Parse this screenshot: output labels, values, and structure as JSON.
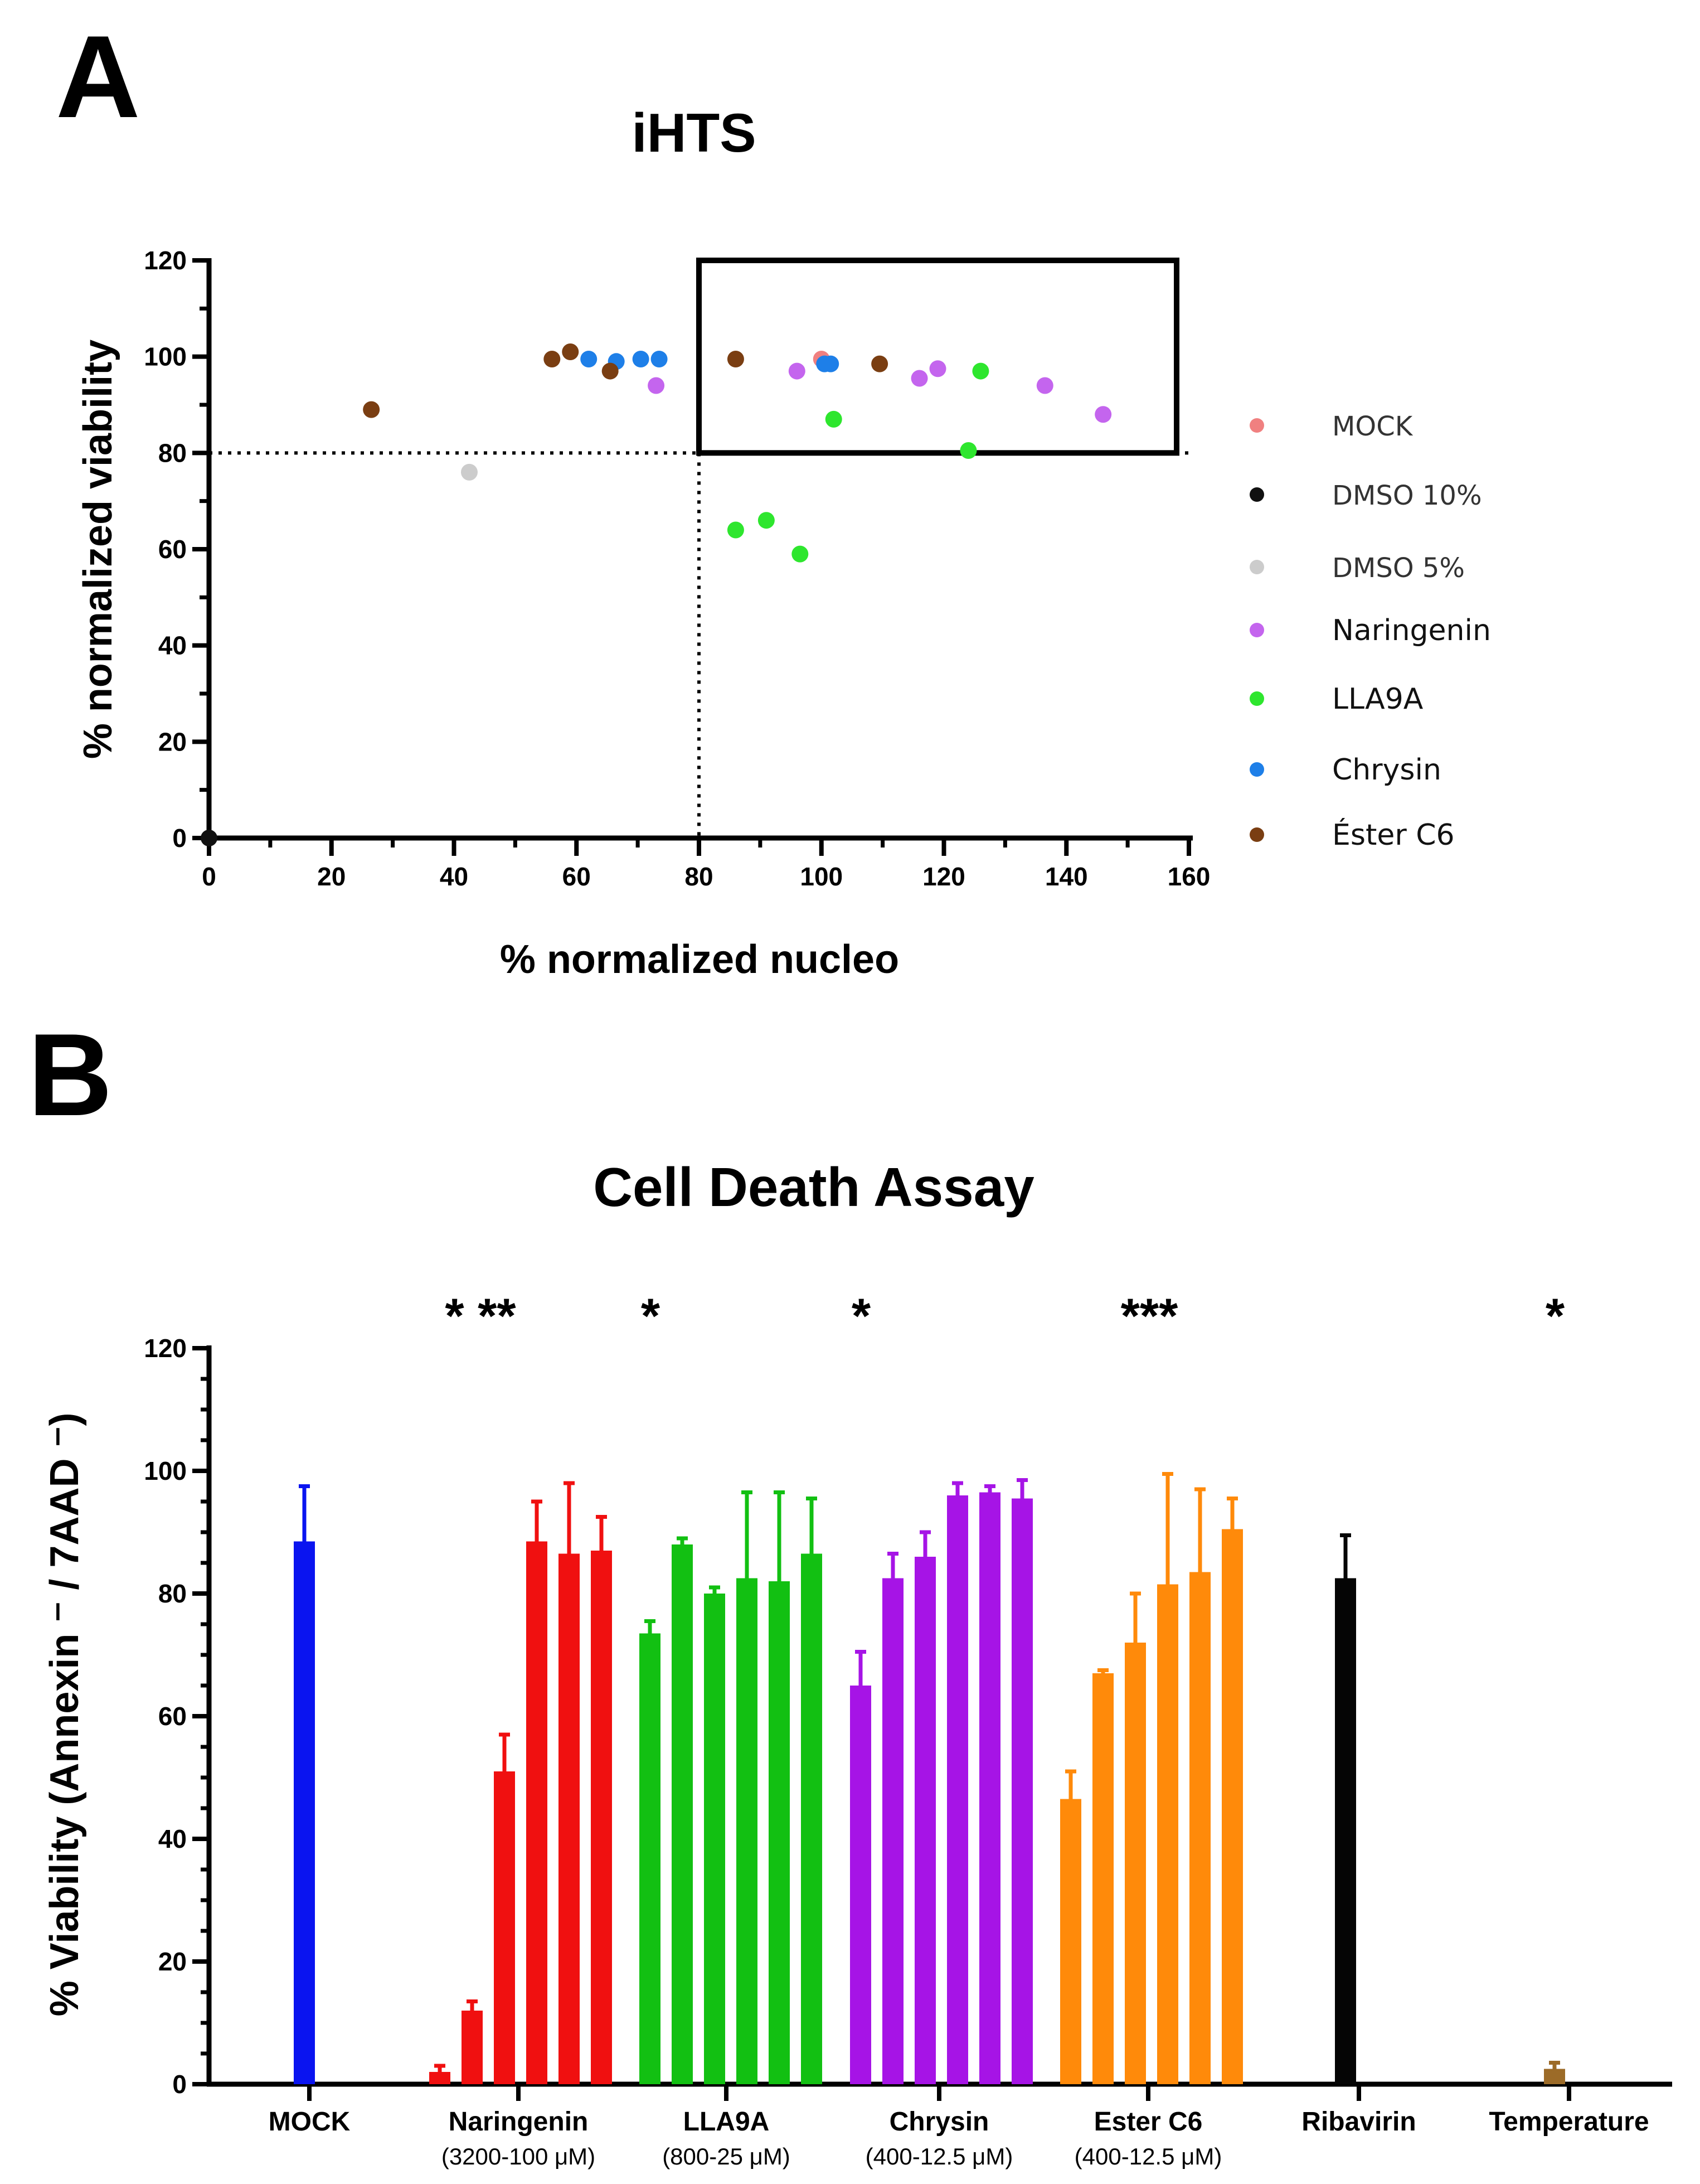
{
  "panels": {
    "a_letter": "A",
    "b_letter": "B"
  },
  "chart_data": [
    {
      "type": "scatter",
      "title": "iHTS",
      "xlabel": "% normalized nucleo",
      "ylabel": "% normalized viability",
      "xlim": [
        0,
        160
      ],
      "ylim": [
        0,
        120
      ],
      "xticks": [
        0,
        20,
        40,
        60,
        80,
        100,
        120,
        140,
        160
      ],
      "yticks": [
        0,
        20,
        40,
        60,
        80,
        100,
        120
      ],
      "threshold_lines": {
        "x": 80,
        "y": 80
      },
      "highlight_box": {
        "x_range": [
          80,
          158
        ],
        "y_range": [
          80,
          120
        ]
      },
      "series": [
        {
          "name": "MOCK",
          "color": "#f08080",
          "points": [
            [
              100,
              99.5
            ]
          ]
        },
        {
          "name": "DMSO 10%",
          "color": "#111111",
          "points": [
            [
              0,
              0
            ]
          ]
        },
        {
          "name": "DMSO 5%",
          "color": "#cccccc",
          "points": [
            [
              42.5,
              76
            ]
          ]
        },
        {
          "name": "Naringenin",
          "color": "#c465ee",
          "points": [
            [
              73,
              94
            ],
            [
              96,
              97
            ],
            [
              116,
              95.5
            ],
            [
              119,
              97.5
            ],
            [
              136.5,
              94
            ],
            [
              146,
              88
            ]
          ]
        },
        {
          "name": "LLA9A",
          "color": "#2ee62e",
          "points": [
            [
              86,
              64
            ],
            [
              91,
              66
            ],
            [
              96.5,
              59
            ],
            [
              102,
              87
            ],
            [
              124,
              80.5
            ],
            [
              126,
              97
            ]
          ]
        },
        {
          "name": "Chrysin",
          "color": "#1e7fe8",
          "points": [
            [
              62,
              99.5
            ],
            [
              66.5,
              99
            ],
            [
              70.5,
              99.5
            ],
            [
              73.5,
              99.5
            ],
            [
              100.5,
              98.5
            ],
            [
              101.5,
              98.5
            ]
          ]
        },
        {
          "name": "Éster C6",
          "color": "#7a3e12",
          "points": [
            [
              26.5,
              89
            ],
            [
              56,
              99.5
            ],
            [
              59,
              101
            ],
            [
              65.5,
              97
            ],
            [
              86,
              99.5
            ],
            [
              109.5,
              98.5
            ]
          ]
        }
      ]
    },
    {
      "type": "bar",
      "title": "Cell Death Assay",
      "xlabel": "",
      "ylabel": "% Viability (Annexin ⁻ / 7AAD ⁻)",
      "ylim": [
        0,
        120
      ],
      "yticks": [
        0,
        20,
        40,
        60,
        80,
        100,
        120
      ],
      "groups": [
        {
          "name": "MOCK",
          "subtitle": "",
          "color": "#0a14f0",
          "stars": "",
          "values": [
            88.5
          ],
          "errors": [
            9
          ]
        },
        {
          "name": "Naringenin",
          "subtitle": "(3200-100 μM)",
          "color": "#f01010",
          "stars": "* **",
          "values": [
            2,
            12,
            51,
            88.5,
            86.5,
            87
          ],
          "errors": [
            1,
            1.5,
            6,
            6.5,
            11.5,
            5.5
          ]
        },
        {
          "name": "LLA9A",
          "subtitle": "(800-25 μM)",
          "color": "#12c012",
          "stars": "*",
          "values": [
            73.5,
            88,
            80,
            82.5,
            82,
            86.5
          ],
          "errors": [
            2,
            1,
            1,
            14,
            14.5,
            9
          ]
        },
        {
          "name": "Chrysin",
          "subtitle": "(400-12.5 μM)",
          "color": "#a614e6",
          "stars": "*",
          "values": [
            65,
            82.5,
            86,
            96,
            96.5,
            95.5
          ],
          "errors": [
            5.5,
            4,
            4,
            2,
            1,
            3
          ]
        },
        {
          "name": "Ester C6",
          "subtitle": "(400-12.5 μM)",
          "color": "#ff8a0a",
          "stars": "***",
          "values": [
            46.5,
            67,
            72,
            81.5,
            83.5,
            90.5
          ],
          "errors": [
            4.5,
            0.5,
            8,
            18,
            13.5,
            5
          ]
        },
        {
          "name": "Ribavirin",
          "subtitle": "",
          "color": "#050505",
          "stars": "",
          "values": [
            82.5
          ],
          "errors": [
            7
          ]
        },
        {
          "name": "Temperature",
          "subtitle": "",
          "color": "#9c6b28",
          "stars": "*",
          "values": [
            2.5
          ],
          "errors": [
            1
          ]
        }
      ]
    }
  ]
}
